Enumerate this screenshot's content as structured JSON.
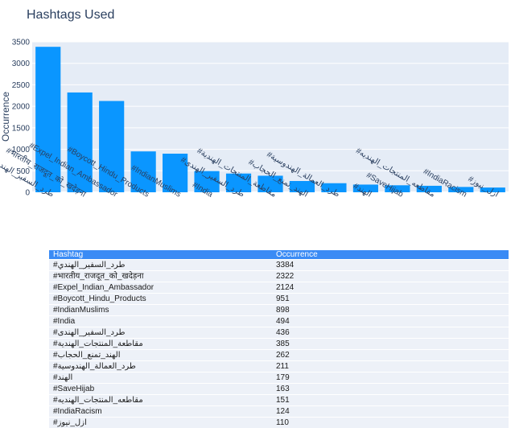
{
  "chart_data": {
    "type": "bar",
    "title": "Hashtags Used",
    "xlabel": "",
    "ylabel": "Occurrence",
    "ylim": [
      0,
      3500
    ],
    "yticks": [
      0,
      500,
      1000,
      1500,
      2000,
      2500,
      3000,
      3500
    ],
    "grid": true,
    "bar_color": "#0a96ff",
    "categories": [
      "#طرد_السفير_الهندي",
      "#भारतीय_राजदूत_को_खदेड़ना",
      "#Expel_Indian_Ambassador",
      "#Boycott_Hindu_Products",
      "#IndianMuslims",
      "#India",
      "#طرد_السفير_الهندى",
      "#مقاطعة_المنتجات_الهندية",
      "#الهند_تمنع_الحجاب",
      "#طرد_العمالة_الهندوسية",
      "#الهند",
      "#SaveHijab",
      "#مقاطعه_المنتجات_الهنديه",
      "#IndiaRacism",
      "#ازل_نيوز"
    ],
    "values": [
      3384,
      2322,
      2124,
      951,
      898,
      494,
      436,
      385,
      262,
      211,
      179,
      163,
      151,
      124,
      110
    ]
  },
  "table": {
    "headers": [
      "Hashtag",
      "Occurrence"
    ],
    "header_color": "#3a8bf5",
    "cell_color": "#edf1f8"
  }
}
